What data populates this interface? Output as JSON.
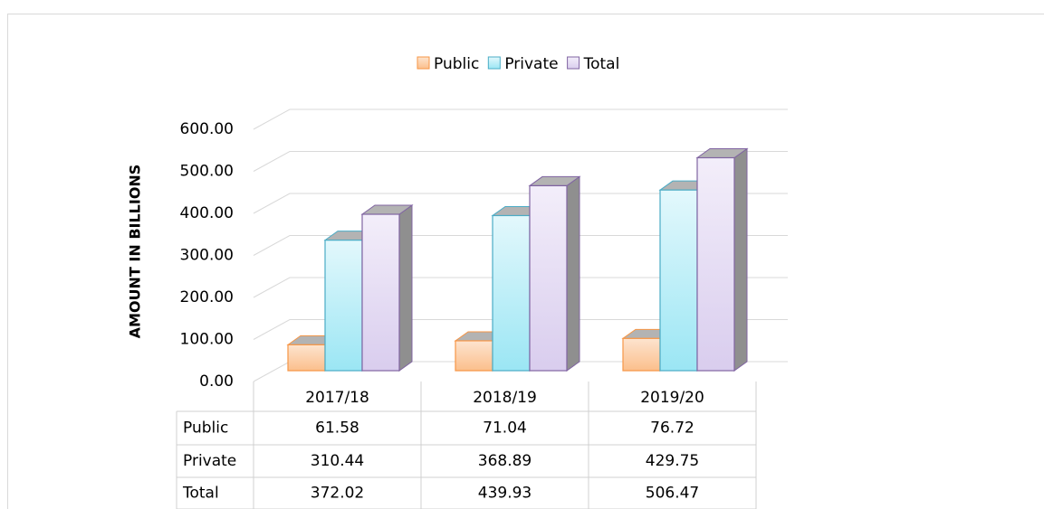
{
  "chart_data": {
    "type": "bar",
    "ylabel": "AMOUNT IN BILLIONS",
    "categories": [
      "2017/18",
      "2018/19",
      "2019/20"
    ],
    "series": [
      {
        "name": "Public",
        "color": "#f79646",
        "values": [
          61.58,
          71.04,
          76.72
        ]
      },
      {
        "name": "Private",
        "color": "#4bacc6",
        "values": [
          310.44,
          368.89,
          429.75
        ]
      },
      {
        "name": "Total",
        "color": "#8064a2",
        "values": [
          372.02,
          439.93,
          506.47
        ]
      }
    ],
    "ylim": [
      0,
      600
    ],
    "yticks": [
      {
        "value": 0,
        "label": "0.00"
      },
      {
        "value": 100,
        "label": "100.00"
      },
      {
        "value": 200,
        "label": "200.00"
      },
      {
        "value": 300,
        "label": "300.00"
      },
      {
        "value": 400,
        "label": "400.00"
      },
      {
        "value": 500,
        "label": "500.00"
      },
      {
        "value": 600,
        "label": "600.00"
      }
    ],
    "grid": true,
    "legend": "top",
    "data_table": true
  }
}
